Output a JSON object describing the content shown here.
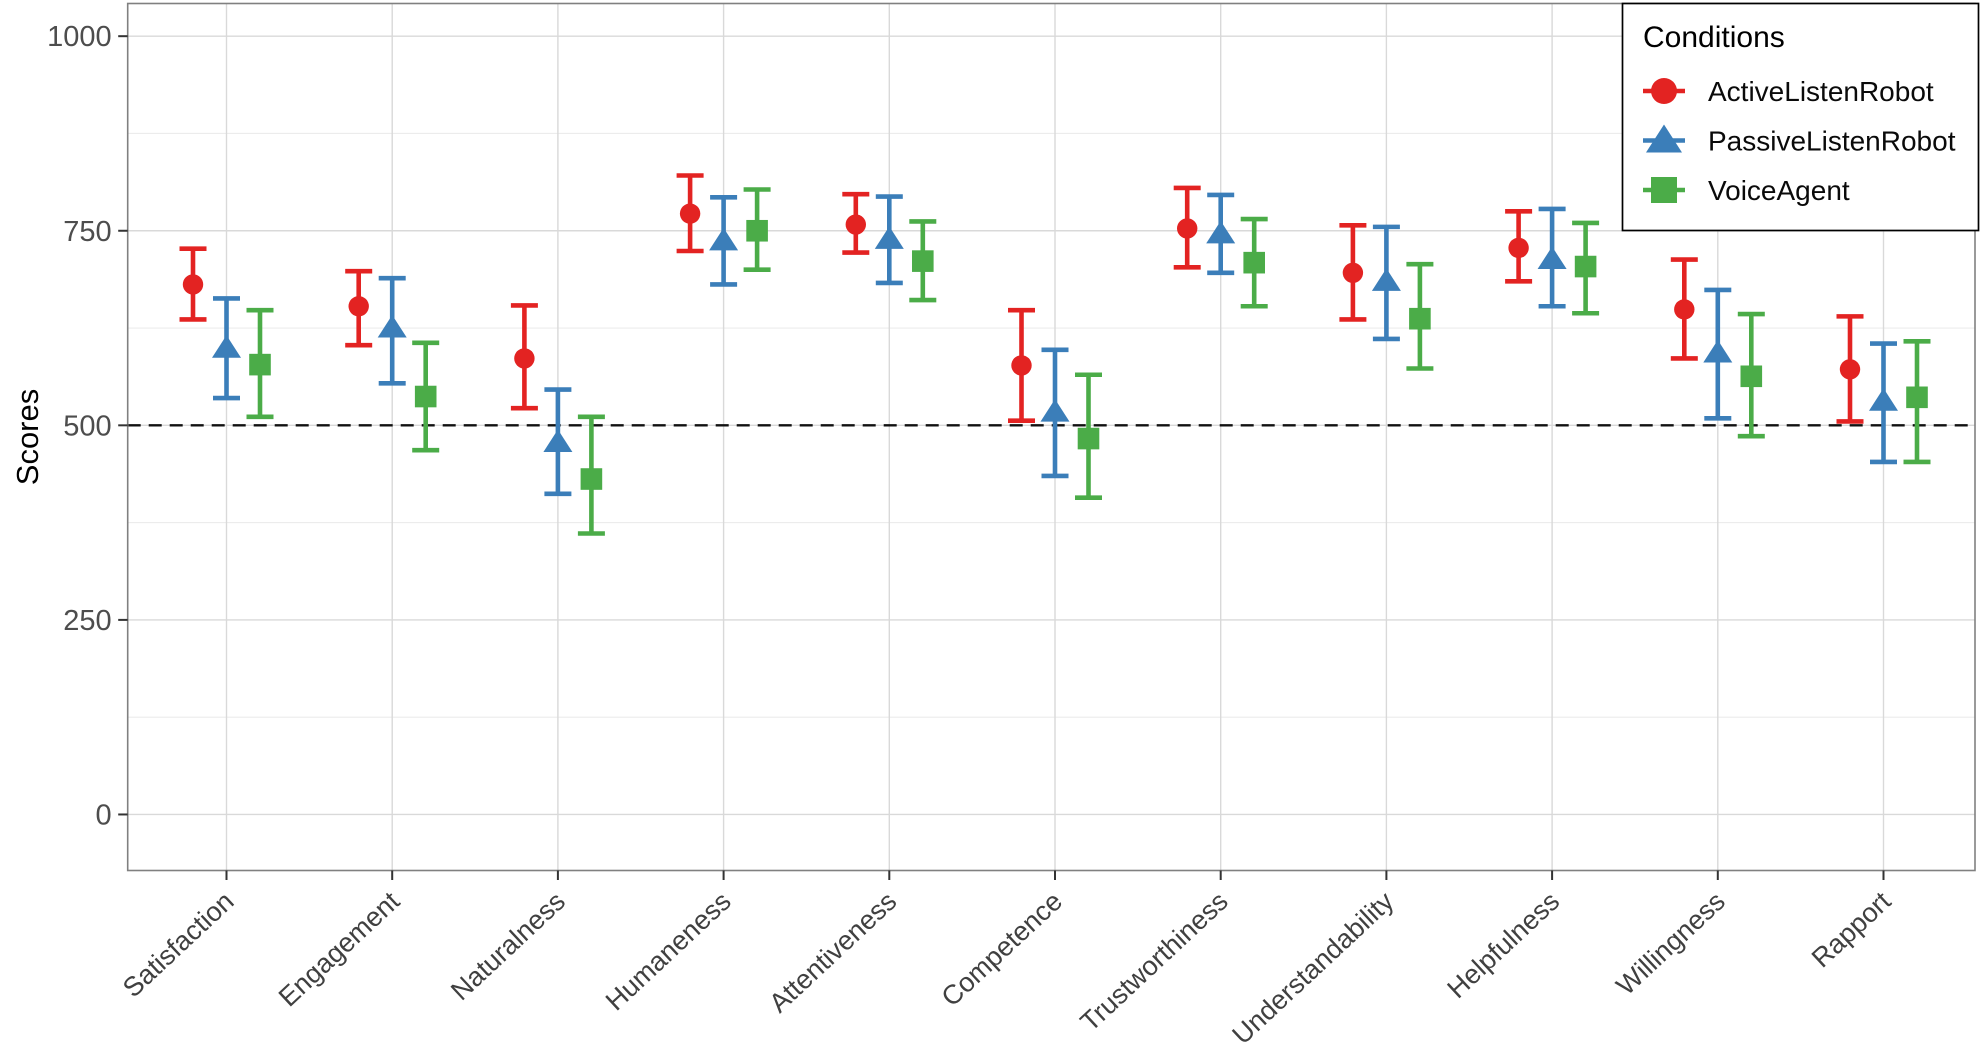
{
  "chart_data": {
    "type": "scatter",
    "subtype": "pointrange-errorbars",
    "title": "",
    "xlabel": "",
    "ylabel": "Scores",
    "categories": [
      "Satisfaction",
      "Engagement",
      "Naturalness",
      "Humaneness",
      "Attentiveness",
      "Competence",
      "Trustworthiness",
      "Understandability",
      "Helpfulness",
      "Willingness",
      "Rapport"
    ],
    "series": [
      {
        "name": "ActiveListenRobot",
        "marker": "circle",
        "color": "#E32322",
        "values": [
          681,
          653,
          586,
          772,
          758,
          577,
          753,
          696,
          728,
          649,
          572
        ],
        "ci_low": [
          636,
          603,
          522,
          724,
          722,
          506,
          703,
          636,
          685,
          586,
          505
        ],
        "ci_high": [
          727,
          698,
          654,
          821,
          797,
          648,
          805,
          757,
          775,
          713,
          640
        ]
      },
      {
        "name": "PassiveListenRobot",
        "marker": "triangle",
        "color": "#3B7EB9",
        "values": [
          599,
          625,
          478,
          737,
          739,
          517,
          746,
          685,
          713,
          593,
          531
        ],
        "ci_low": [
          535,
          554,
          412,
          681,
          683,
          435,
          696,
          611,
          653,
          509,
          453
        ],
        "ci_high": [
          663,
          689,
          546,
          793,
          794,
          597,
          796,
          755,
          778,
          674,
          605
        ]
      },
      {
        "name": "VoiceAgent",
        "marker": "square",
        "color": "#4BAC48",
        "values": [
          578,
          537,
          431,
          750,
          711,
          483,
          709,
          637,
          704,
          563,
          536
        ],
        "ci_low": [
          511,
          468,
          361,
          700,
          661,
          407,
          653,
          573,
          644,
          486,
          453
        ],
        "ci_high": [
          648,
          606,
          511,
          803,
          762,
          565,
          765,
          707,
          760,
          643,
          608
        ]
      }
    ],
    "yticks": [
      0,
      250,
      500,
      750,
      1000
    ],
    "minor_yticks": [
      125,
      375,
      625,
      875
    ],
    "ylim": [
      -72,
      1042
    ],
    "reference_line": 500,
    "grid": true,
    "x_label_rotation_deg": 43,
    "legend": {
      "title": "Conditions",
      "position": "top-right"
    },
    "colors": {
      "major_grid": "#d9d9d9",
      "minor_grid": "#ececec",
      "panel_border": "#808080",
      "tick_mark": "#333333",
      "reference_line": "#111111"
    }
  }
}
